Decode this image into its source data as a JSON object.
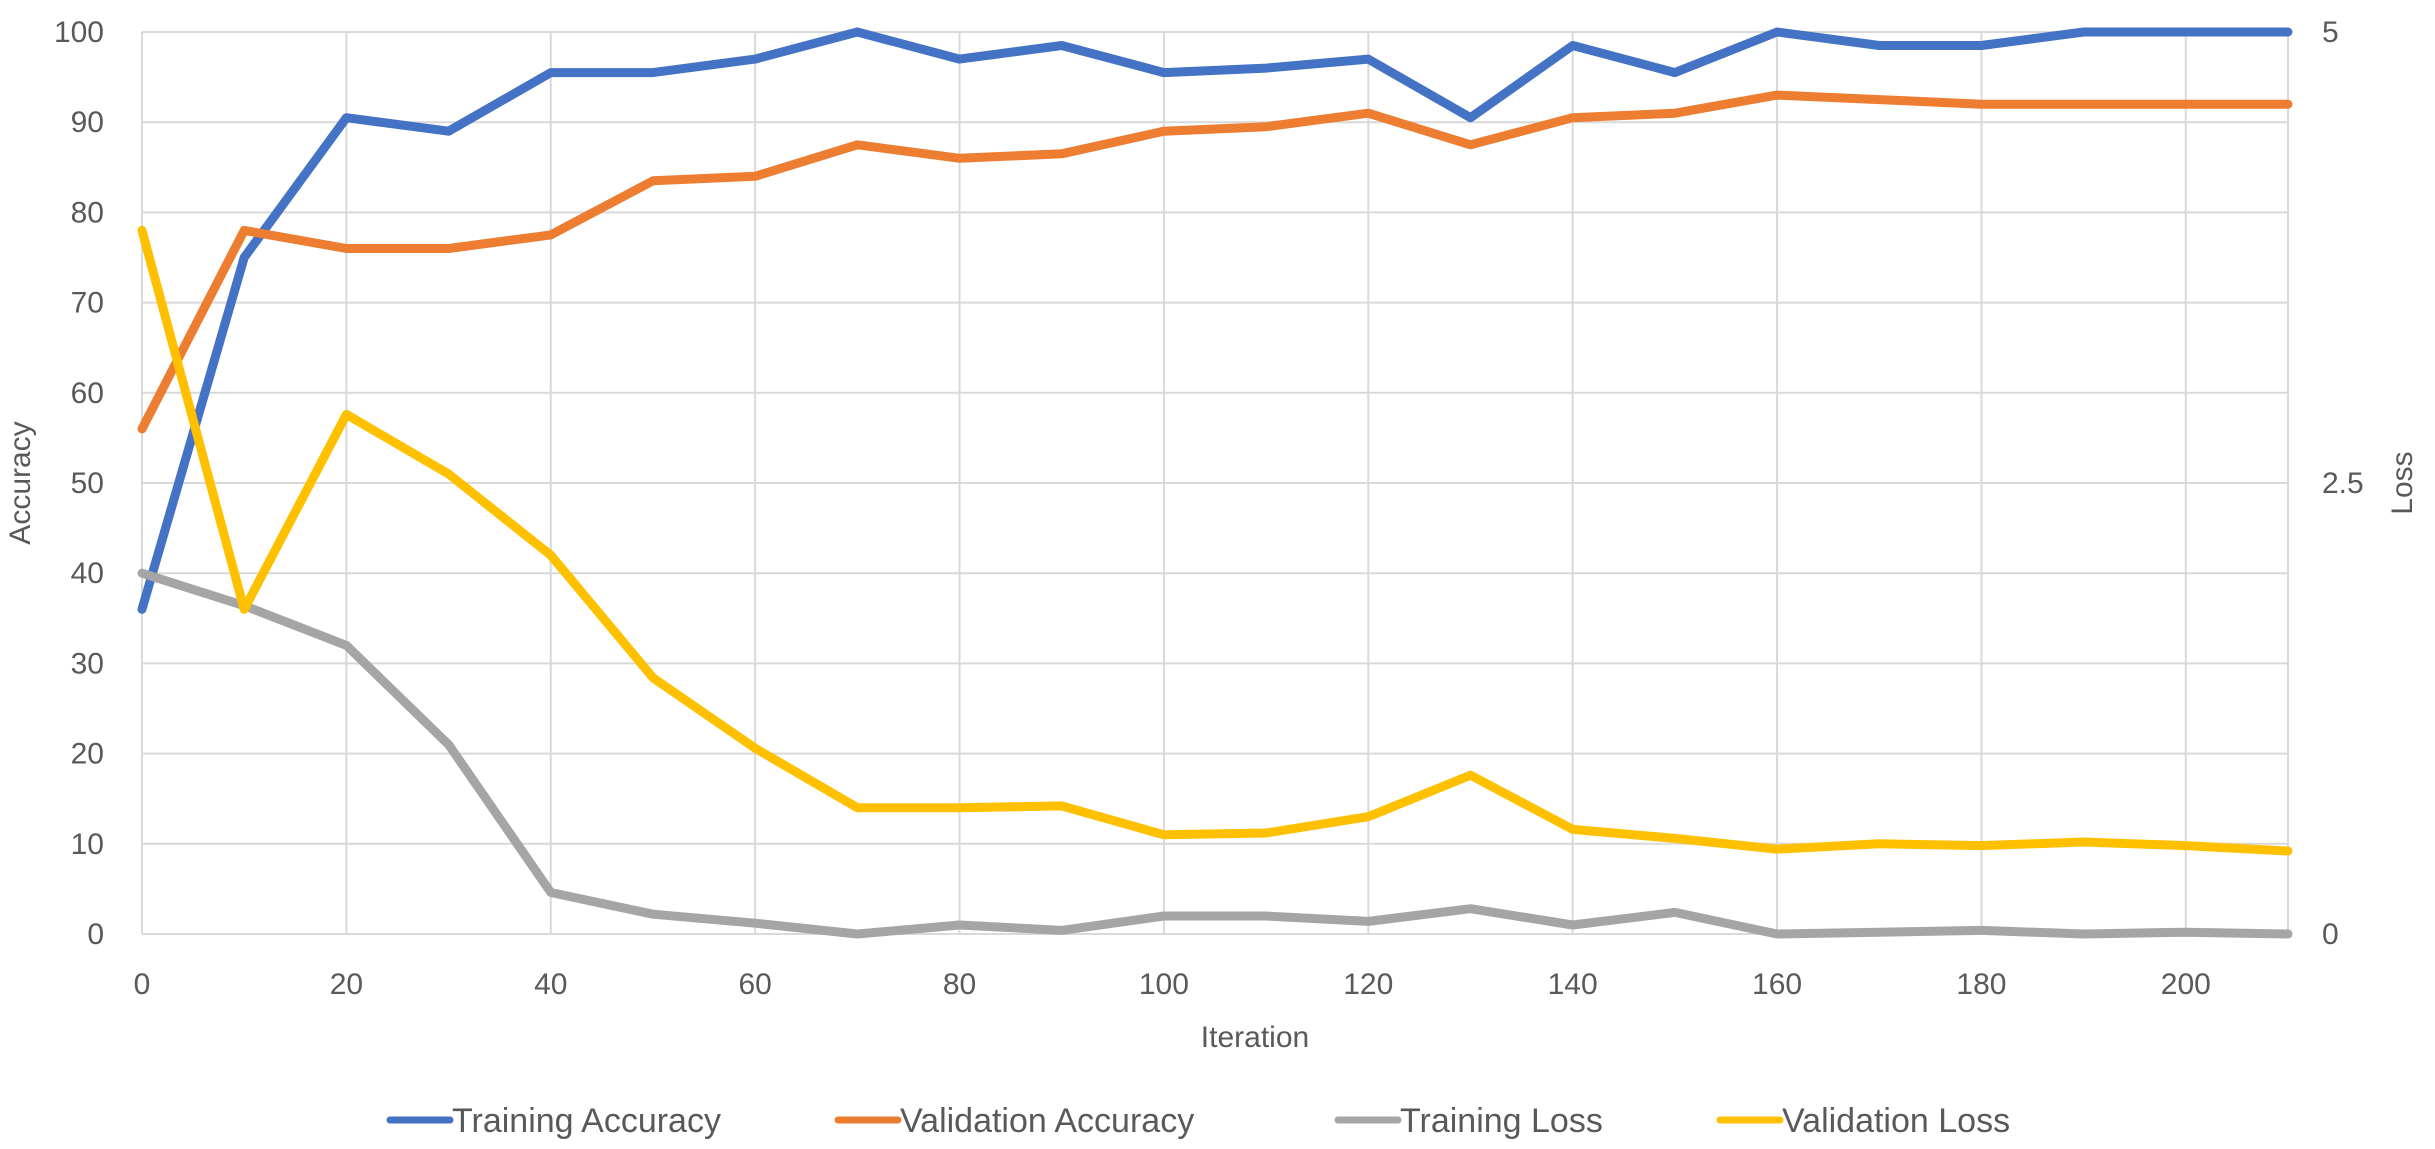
{
  "chart_data": {
    "type": "line",
    "title": "",
    "xlabel": "Iteration",
    "ylabel": "Accuracy",
    "y2label": "Loss",
    "xlim": [
      0,
      210
    ],
    "ylim": [
      0,
      100
    ],
    "y2lim": [
      0,
      5
    ],
    "x_ticks": [
      0,
      20,
      40,
      60,
      80,
      100,
      120,
      140,
      160,
      180,
      200
    ],
    "y_ticks": [
      0,
      10,
      20,
      30,
      40,
      50,
      60,
      70,
      80,
      90,
      100
    ],
    "y2_ticks": [
      0,
      2.5,
      5
    ],
    "grid": true,
    "legend_position": "bottom",
    "x": [
      0,
      10,
      20,
      30,
      40,
      50,
      60,
      70,
      80,
      90,
      100,
      110,
      120,
      130,
      140,
      150,
      160,
      170,
      180,
      190,
      200,
      210
    ],
    "series": [
      {
        "name": "Training Accuracy",
        "axis": "left",
        "color": "#4472C4",
        "values": [
          36,
          75,
          90.5,
          89,
          95.5,
          95.5,
          97,
          100,
          97,
          98.5,
          95.5,
          96,
          97,
          90.5,
          98.5,
          95.5,
          100,
          98.5,
          98.5,
          100,
          100,
          100
        ]
      },
      {
        "name": "Validation Accuracy",
        "axis": "left",
        "color": "#ED7D31",
        "values": [
          56,
          78,
          76,
          76,
          77.5,
          83.5,
          84,
          87.5,
          86,
          86.5,
          89,
          89.5,
          91,
          87.5,
          90.5,
          91,
          93,
          92.5,
          92,
          92,
          92,
          92
        ]
      },
      {
        "name": "Training Loss",
        "axis": "right",
        "color": "#A5A5A5",
        "values": [
          2.0,
          1.82,
          1.6,
          1.05,
          0.23,
          0.11,
          0.06,
          0.0,
          0.05,
          0.02,
          0.1,
          0.1,
          0.07,
          0.14,
          0.05,
          0.12,
          0.0,
          0.01,
          0.02,
          0.0,
          0.01,
          0.0
        ]
      },
      {
        "name": "Validation Loss",
        "axis": "right",
        "color": "#FFC000",
        "values": [
          3.9,
          1.8,
          2.88,
          2.55,
          2.1,
          1.42,
          1.03,
          0.7,
          0.7,
          0.71,
          0.55,
          0.56,
          0.65,
          0.88,
          0.58,
          0.53,
          0.47,
          0.5,
          0.49,
          0.51,
          0.49,
          0.46
        ]
      }
    ]
  }
}
